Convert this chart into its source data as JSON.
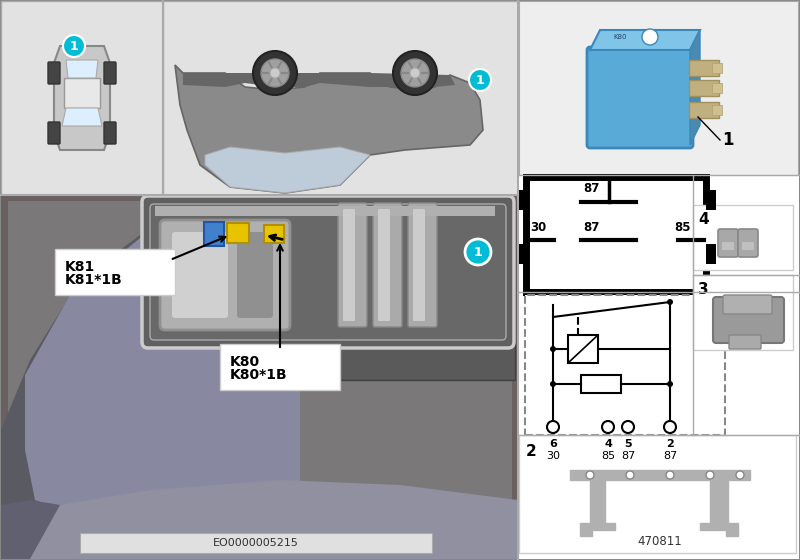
{
  "bg_color": "#ffffff",
  "left_panel_color": "#d8d8d8",
  "top_panel_color": "#e2e2e2",
  "engine_bg": "#8a8a8a",
  "engine_mid": "#7a7a7a",
  "engine_dark": "#5a5a5a",
  "silver_part": "#b0b0b0",
  "silver_light": "#cccccc",
  "silver_dark": "#909090",
  "circle_color": "#00bcd4",
  "yellow_part": "#e8c400",
  "blue_connector": "#4080cc",
  "relay_blue": "#5aaad8",
  "relay_blue_light": "#80c4e8",
  "relay_metal": "#b8b090",
  "panel_divider": "#aaaaaa",
  "right_bg": "#ffffff",
  "label_k80": "K80\nK80*1B",
  "label_k81": "K81\nK81*1B",
  "doc_left": "EO0000005215",
  "doc_right": "470811",
  "pin_box_labels": [
    "87",
    "30",
    "87",
    "85"
  ],
  "circuit_pin_top": [
    "6",
    "4",
    "5",
    "2"
  ],
  "circuit_pin_bot": [
    "30",
    "85",
    "87",
    "87"
  ]
}
